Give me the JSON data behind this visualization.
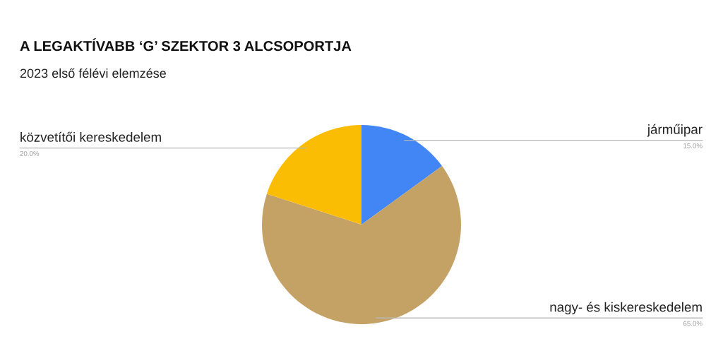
{
  "chart_data": {
    "type": "pie",
    "title": "A LEGAKTÍVABB ‘G’ SZEKTOR 3 ALCSOPORTJA",
    "subtitle": "2023 első félévi elemzése",
    "categories": [
      "járműipar",
      "nagy- és kiskereskedelem",
      "közvetítői kereskedelem"
    ],
    "values": [
      15,
      65,
      20
    ],
    "colors": [
      "#4285f4",
      "#c4a265",
      "#fbbc04"
    ],
    "value_labels": [
      "15.0%",
      "65.0%",
      "20.0%"
    ]
  }
}
